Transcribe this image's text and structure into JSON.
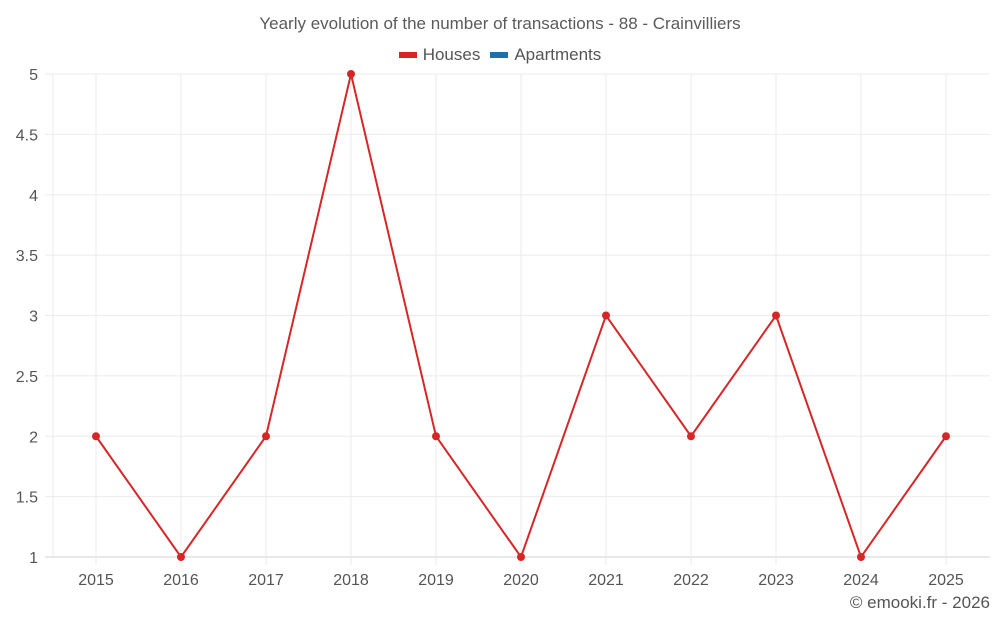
{
  "chart_data": {
    "type": "line",
    "title": "Yearly evolution of the number of transactions - 88 - Crainvilliers",
    "categories": [
      "2015",
      "2016",
      "2017",
      "2018",
      "2019",
      "2020",
      "2021",
      "2022",
      "2023",
      "2024",
      "2025"
    ],
    "series": [
      {
        "name": "Houses",
        "color": "#d62728",
        "values": [
          2,
          1,
          2,
          5,
          2,
          1,
          3,
          2,
          3,
          1,
          2
        ]
      },
      {
        "name": "Apartments",
        "color": "#1f6fa8",
        "values": []
      }
    ],
    "xlabel": "",
    "ylabel": "",
    "ylim": [
      1,
      5
    ],
    "yticks": [
      "1",
      "1.5",
      "2",
      "2.5",
      "3",
      "3.5",
      "4",
      "4.5",
      "5"
    ],
    "grid": true,
    "legend_position": "top"
  },
  "footer": "© emooki.fr - 2026",
  "colors": {
    "houses": "#d62728",
    "apartments": "#1f6fa8",
    "grid": "#ebebeb",
    "axis": "#d0d0d0"
  }
}
